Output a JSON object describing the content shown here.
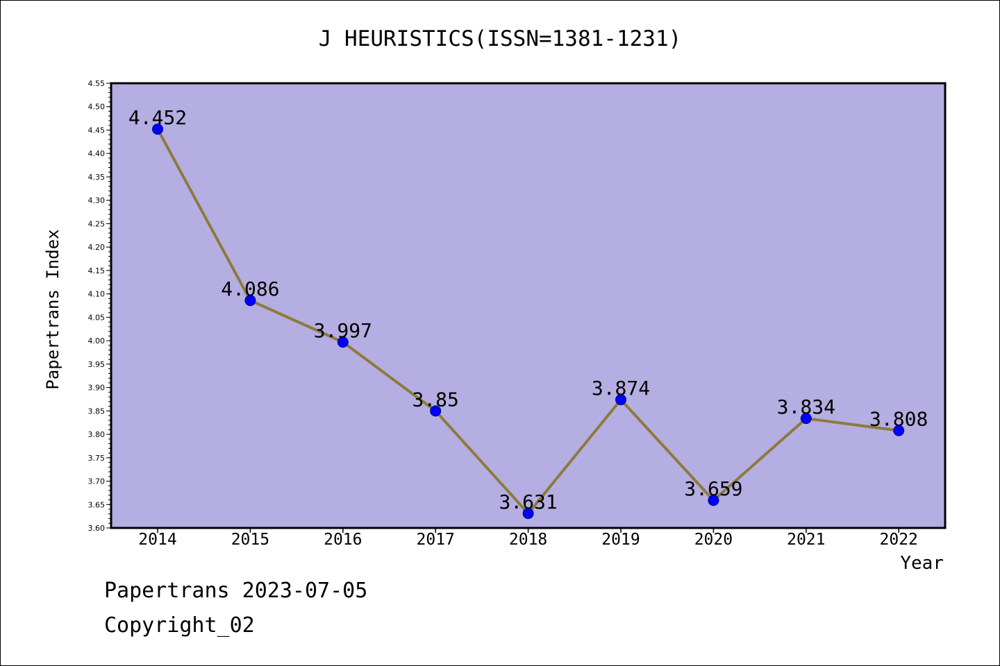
{
  "footer": {
    "line1": "Papertrans 2023-07-05",
    "line2": "Copyright_02"
  },
  "colors": {
    "plot_background": "#b5aee2",
    "line": "#8b7b3c",
    "marker": "#0000ff",
    "marker_edge": "#00008b"
  },
  "chart_data": {
    "type": "line",
    "title": "J HEURISTICS(ISSN=1381-1231)",
    "xlabel": "Year",
    "ylabel": "Papertrans Index",
    "categories": [
      "2014",
      "2015",
      "2016",
      "2017",
      "2018",
      "2019",
      "2020",
      "2021",
      "2022"
    ],
    "values": [
      4.452,
      4.086,
      3.997,
      3.85,
      3.631,
      3.874,
      3.659,
      3.834,
      3.808
    ],
    "data_labels": [
      "4.452",
      "4.086",
      "3.997",
      "3.85",
      "3.631",
      "3.874",
      "3.659",
      "3.834",
      "3.808"
    ],
    "ylim": [
      3.6,
      4.55
    ],
    "yticks": [
      "3.60",
      "3.65",
      "3.70",
      "3.75",
      "3.80",
      "3.85",
      "3.90",
      "3.95",
      "4.00",
      "4.05",
      "4.10",
      "4.15",
      "4.20",
      "4.25",
      "4.30",
      "4.35",
      "4.40",
      "4.45",
      "4.50",
      "4.55"
    ],
    "grid": false,
    "legend": "none"
  }
}
